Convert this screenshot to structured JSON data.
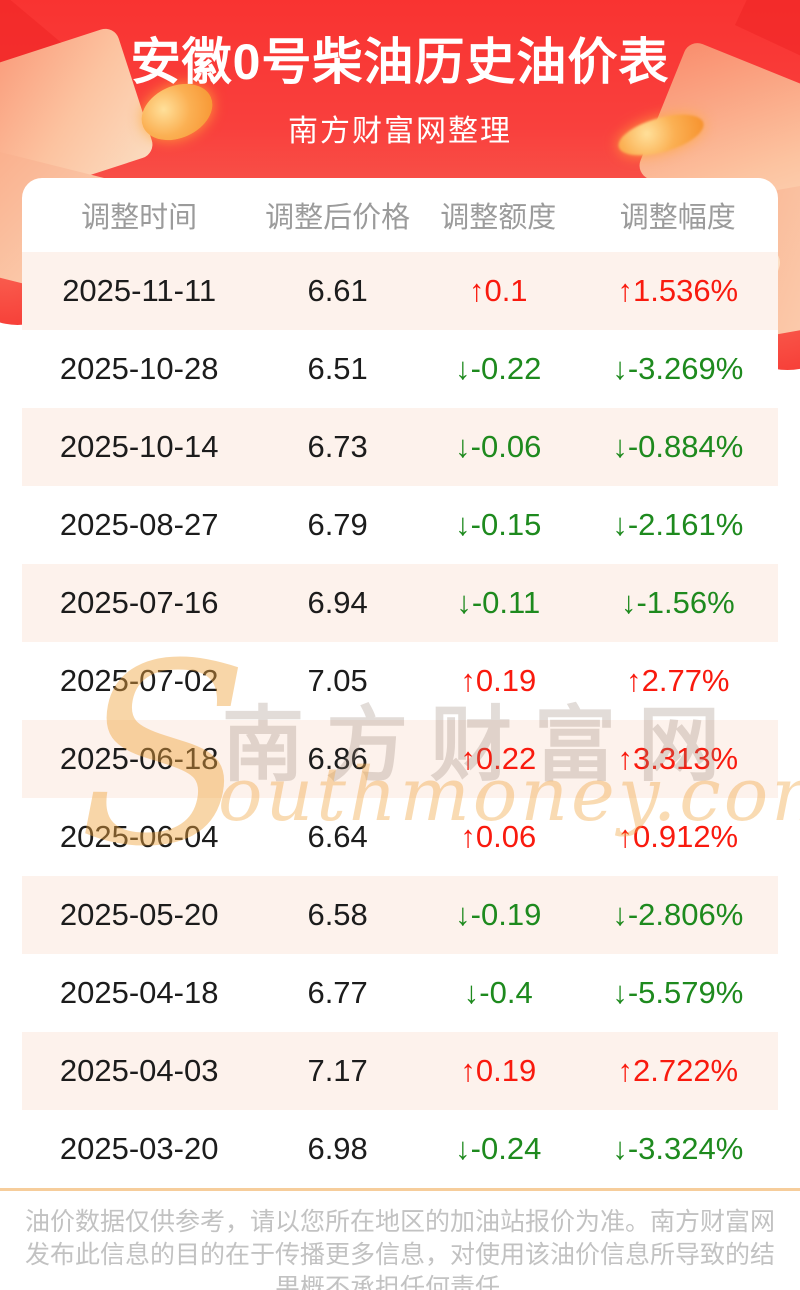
{
  "header": {
    "title": "安徽0号柴油历史油价表",
    "subtitle": "南方财富网整理"
  },
  "chart_data": {
    "type": "table",
    "title": "安徽0号柴油历史油价表",
    "subtitle": "南方财富网整理",
    "columns": [
      "调整时间",
      "调整后价格",
      "调整额度",
      "调整幅度"
    ],
    "rows": [
      [
        "2025-11-11",
        6.61,
        0.1,
        1.536
      ],
      [
        "2025-10-28",
        6.51,
        -0.22,
        -3.269
      ],
      [
        "2025-10-14",
        6.73,
        -0.06,
        -0.884
      ],
      [
        "2025-08-27",
        6.79,
        -0.15,
        -2.161
      ],
      [
        "2025-07-16",
        6.94,
        -0.11,
        -1.56
      ],
      [
        "2025-07-02",
        7.05,
        0.19,
        2.77
      ],
      [
        "2025-06-18",
        6.86,
        0.22,
        3.313
      ],
      [
        "2025-06-04",
        6.64,
        0.06,
        0.912
      ],
      [
        "2025-05-20",
        6.58,
        -0.19,
        -2.806
      ],
      [
        "2025-04-18",
        6.77,
        -0.4,
        -5.579
      ],
      [
        "2025-04-03",
        7.17,
        0.19,
        2.722
      ],
      [
        "2025-03-20",
        6.98,
        -0.24,
        -3.324
      ]
    ],
    "value_prefix_up": "↑",
    "value_prefix_down": "↓",
    "pct_suffix": "%"
  },
  "watermark": {
    "initial": "S",
    "cn": "南方财富网",
    "en": "outhmoney.com"
  },
  "footer": {
    "lines": [
      "油价数据仅供参考，请以您所在地区的加油站报价为准。南方财富网",
      "发布此信息的目的在于传播更多信息，对使用该油价信息所导致的结",
      "果概不承担任何责任。"
    ]
  },
  "colors": {
    "up_red": "#f91a0e",
    "down_green": "#1e8a1e",
    "stripe_pink": "#fdf2ec",
    "banner_red": "#f93331",
    "header_gray": "#9b9b9b",
    "divider_tan": "#f6cd9b",
    "footer_gray": "#c2c2c2"
  }
}
